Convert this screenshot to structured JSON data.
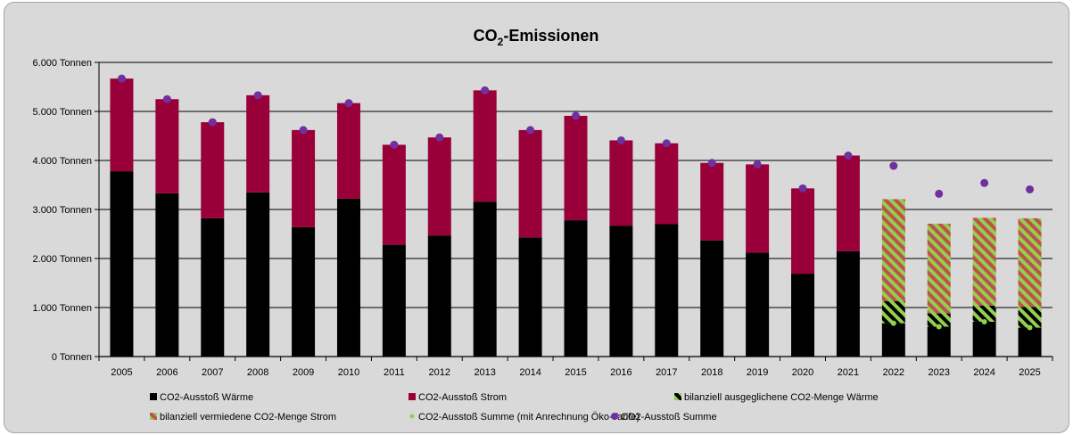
{
  "chart_data": {
    "type": "bar",
    "title": "CO",
    "title_sub": "2",
    "title_rest": "-Emissionen",
    "y_unit": "Tonnen",
    "ylim": [
      0,
      6000
    ],
    "y_ticks": [
      "0 Tonnen",
      "1.000 Tonnen",
      "2.000 Tonnen",
      "3.000 Tonnen",
      "4.000 Tonnen",
      "5.000 Tonnen",
      "6.000 Tonnen"
    ],
    "categories": [
      "2005",
      "2006",
      "2007",
      "2008",
      "2009",
      "2010",
      "2011",
      "2012",
      "2013",
      "2014",
      "2015",
      "2016",
      "2017",
      "2018",
      "2019",
      "2020",
      "2021",
      "2022",
      "2023",
      "2024",
      "2025"
    ],
    "series": [
      {
        "name": "CO2-Ausstoß Wärme",
        "color": "#000000",
        "values": [
          3780,
          3330,
          2820,
          3350,
          2640,
          3220,
          2280,
          2470,
          3160,
          2430,
          2780,
          2670,
          2700,
          2370,
          2120,
          1690,
          2150,
          null,
          null,
          null,
          null
        ]
      },
      {
        "name": "CO2-Ausstoß Strom",
        "color": "#99003a",
        "values": [
          1890,
          1920,
          1960,
          1980,
          1980,
          1950,
          2040,
          2000,
          2270,
          2190,
          2130,
          1740,
          1650,
          1580,
          1800,
          1740,
          1950,
          null,
          null,
          null,
          null
        ]
      },
      {
        "name": "bilanziell ausgeglichene CO2-Menge Wärme",
        "color": "#92d050",
        "values": [
          null,
          null,
          null,
          null,
          null,
          null,
          null,
          null,
          null,
          null,
          null,
          null,
          null,
          null,
          null,
          null,
          null,
          1130,
          880,
          1040,
          1010
        ]
      },
      {
        "name": "bilanziell vermiedene CO2-Menge Strom",
        "color": "#c0504d",
        "values": [
          null,
          null,
          null,
          null,
          null,
          null,
          null,
          null,
          null,
          null,
          null,
          null,
          null,
          null,
          null,
          null,
          null,
          2080,
          1830,
          1790,
          1810
        ]
      },
      {
        "name": "CO2-Ausstoß Summe (mit Anrechnung Öko-Tarife)",
        "color": "#92d050",
        "values": [
          null,
          null,
          null,
          null,
          null,
          null,
          null,
          null,
          null,
          null,
          null,
          null,
          null,
          null,
          null,
          null,
          null,
          680,
          610,
          710,
          590
        ]
      },
      {
        "name": "CO2-Ausstoß Summe",
        "color": "#7030a0",
        "values": [
          5670,
          5250,
          4780,
          5330,
          4620,
          5170,
          4320,
          4470,
          5430,
          4620,
          4910,
          4410,
          4350,
          3950,
          3920,
          3430,
          4100,
          3890,
          3320,
          3540,
          3410
        ]
      }
    ],
    "grid": true,
    "legend_position": "bottom"
  }
}
